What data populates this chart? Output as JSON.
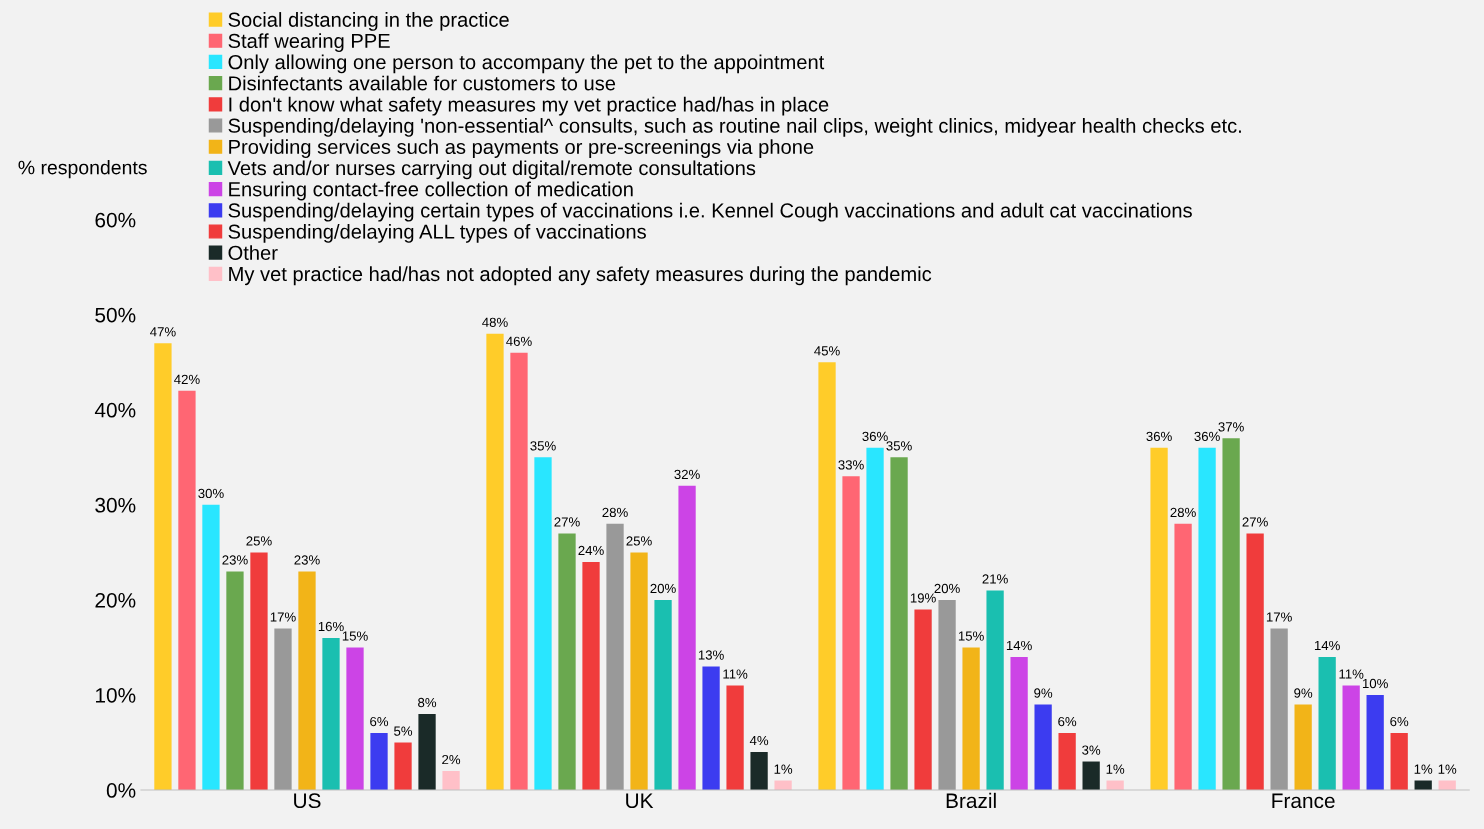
{
  "chart_data": {
    "type": "bar",
    "ylabel": "% respondents",
    "categories": [
      "US",
      "UK",
      "Brazil",
      "France"
    ],
    "series": [
      {
        "name": "Social distancing in the practice",
        "color": "#ffcc29",
        "values": [
          47,
          48,
          45,
          36
        ],
        "value_labels": [
          "47%",
          "48%",
          "45%",
          "36%"
        ]
      },
      {
        "name": "Staff wearing PPE",
        "color": "#ff6673",
        "values": [
          42,
          46,
          33,
          28
        ],
        "value_labels": [
          "42%",
          "46%",
          "33%",
          "28%"
        ]
      },
      {
        "name": "Only allowing one person to accompany the pet to the appointment",
        "color": "#29e6ff",
        "values": [
          30,
          35,
          36,
          36
        ],
        "value_labels": [
          "30%",
          "35%",
          "36%",
          "36%"
        ]
      },
      {
        "name": "Disinfectants available for customers to use",
        "color": "#6aa84f",
        "values": [
          23,
          27,
          35,
          37
        ],
        "value_labels": [
          "23%",
          "27%",
          "35%",
          "37%"
        ]
      },
      {
        "name": "I don't know what safety measures my vet practice had/has in place",
        "color": "#f03c3c",
        "values": [
          25,
          24,
          19,
          27
        ],
        "value_labels": [
          "25%",
          "24%",
          "19%",
          "27%"
        ]
      },
      {
        "name": "Suspending/delaying 'non-essential^ consults, such as routine nail clips, weight clinics, midyear health checks etc.",
        "color": "#999999",
        "values": [
          17,
          28,
          20,
          17
        ],
        "value_labels": [
          "17%",
          "28%",
          "20%",
          "17%"
        ]
      },
      {
        "name": "Providing services such as payments or pre-screenings via phone",
        "color": "#f2b418",
        "values": [
          23,
          25,
          15,
          9
        ],
        "value_labels": [
          "23%",
          "25%",
          "15%",
          "9%"
        ]
      },
      {
        "name": "Vets and/or nurses carrying out digital/remote consultations",
        "color": "#1abfb0",
        "values": [
          16,
          20,
          21,
          14
        ],
        "value_labels": [
          "16%",
          "20%",
          "21%",
          "14%"
        ]
      },
      {
        "name": "Ensuring contact-free collection of medication",
        "color": "#cc44e6",
        "values": [
          15,
          32,
          14,
          11
        ],
        "value_labels": [
          "15%",
          "32%",
          "14%",
          "11%"
        ]
      },
      {
        "name": "Suspending/delaying certain types of vaccinations i.e. Kennel Cough vaccinations and adult cat vaccinations",
        "color": "#3c3cf0",
        "values": [
          6,
          13,
          9,
          10
        ],
        "value_labels": [
          "6%",
          "13%",
          "9%",
          "10%"
        ]
      },
      {
        "name": "Suspending/delaying ALL types of vaccinations",
        "color": "#f03c3c",
        "values": [
          5,
          11,
          6,
          6
        ],
        "value_labels": [
          "5%",
          "11%",
          "6%",
          "6%"
        ]
      },
      {
        "name": "Other",
        "color": "#1a2a28",
        "values": [
          8,
          4,
          3,
          1
        ],
        "value_labels": [
          "8%",
          "4%",
          "3%",
          "1%"
        ]
      },
      {
        "name": "My vet practice had/has not adopted any safety measures during the pandemic",
        "color": "#ffc0c8",
        "values": [
          2,
          1,
          1,
          1
        ],
        "value_labels": [
          "2%",
          "1%",
          "1%",
          "1%"
        ]
      }
    ],
    "ylim": [
      0,
      60
    ],
    "yticks": [
      {
        "value": 0,
        "label": "0%"
      },
      {
        "value": 10,
        "label": "10%"
      },
      {
        "value": 20,
        "label": "20%"
      },
      {
        "value": 30,
        "label": "30%"
      },
      {
        "value": 40,
        "label": "40%"
      },
      {
        "value": 50,
        "label": "50%"
      },
      {
        "value": 60,
        "label": "60%"
      }
    ],
    "grid": false,
    "legend": "top left"
  }
}
